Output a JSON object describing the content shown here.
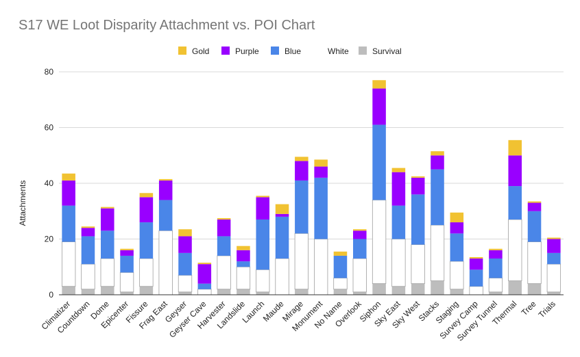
{
  "chart_data": {
    "type": "bar",
    "stacked": true,
    "title": "S17 WE Loot Disparity Attachment vs. POI Chart",
    "xlabel": "",
    "ylabel": "Attachments",
    "ylim": [
      0,
      80
    ],
    "yticks": [
      0,
      20,
      40,
      60,
      80
    ],
    "grid": true,
    "legend_position": "top",
    "categories": [
      "Climatizer",
      "Countdown",
      "Dome",
      "Epicenter",
      "Fissure",
      "Frag East",
      "Geyser",
      "Geyser Cave",
      "Harvester",
      "Landslide",
      "Launch",
      "Maude",
      "Mirage",
      "Monument",
      "No Name",
      "Overlook",
      "Siphon",
      "Sky East",
      "Sky West",
      "Stacks",
      "Staging",
      "Survey Camp",
      "Survey Tunnel",
      "Thermal",
      "Tree",
      "Trials"
    ],
    "legend_order": [
      "Gold",
      "Purple",
      "Blue",
      "White",
      "Survival"
    ],
    "series": [
      {
        "name": "Survival",
        "color": "#bdbdbd",
        "values": [
          3,
          2,
          3,
          1,
          3,
          0,
          1,
          0,
          2,
          2,
          1,
          0,
          2,
          0,
          2,
          1,
          4,
          3,
          4,
          5,
          2,
          0,
          1,
          5,
          4,
          1
        ]
      },
      {
        "name": "White",
        "color": "#ffffff",
        "values": [
          16,
          9,
          10,
          7,
          10,
          23,
          6,
          2,
          12,
          8,
          8,
          13,
          20,
          20,
          4,
          12,
          30,
          17,
          14,
          20,
          10,
          3,
          5,
          22,
          15,
          10
        ]
      },
      {
        "name": "Blue",
        "color": "#4a86e8",
        "values": [
          13,
          10,
          10,
          6,
          13,
          11,
          8,
          2,
          7,
          2,
          18,
          15,
          19,
          22,
          8,
          7,
          27,
          12,
          18,
          20,
          10,
          6,
          7,
          12,
          11,
          4
        ]
      },
      {
        "name": "Purple",
        "color": "#9900ff",
        "values": [
          9,
          3,
          8,
          2,
          9,
          7,
          6,
          7,
          6,
          4,
          8,
          1,
          7,
          4,
          0,
          3,
          13,
          12,
          6,
          5,
          4,
          4,
          3,
          11,
          3,
          5
        ]
      },
      {
        "name": "Gold",
        "color": "#f1c232",
        "values": [
          2.5,
          0.5,
          0.5,
          0.5,
          1.5,
          0.5,
          2.5,
          0.5,
          0.5,
          1.5,
          0.5,
          3.5,
          1.5,
          2.5,
          1.5,
          0.5,
          3,
          1.5,
          0.5,
          1.5,
          3.5,
          0.5,
          0.5,
          5.5,
          0.5,
          0.5
        ]
      }
    ]
  }
}
